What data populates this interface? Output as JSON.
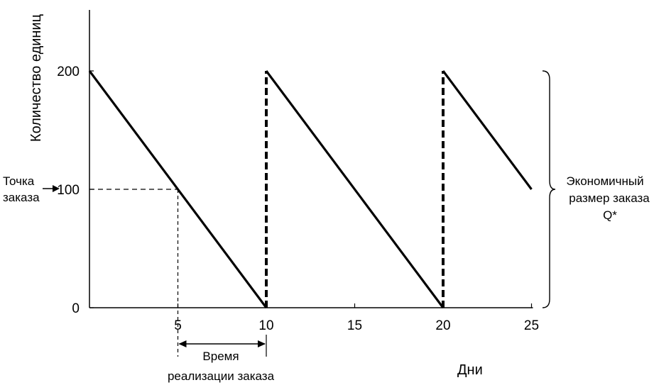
{
  "chart_data": {
    "type": "line",
    "title": "",
    "xlabel": "Дни",
    "ylabel": "Количество единиц",
    "xlim": [
      0,
      25
    ],
    "ylim": [
      0,
      240
    ],
    "x_ticks": [
      "5",
      "10",
      "15",
      "20",
      "25"
    ],
    "y_ticks": [
      "0",
      "100",
      "200"
    ],
    "grid": false,
    "series": [
      {
        "x": [
          0,
          10
        ],
        "y": [
          200,
          0
        ]
      },
      {
        "x": [
          10,
          20
        ],
        "y": [
          200,
          0
        ]
      },
      {
        "x": [
          20,
          25
        ],
        "y": [
          200,
          100
        ]
      }
    ],
    "replenishment_days": [
      10,
      20
    ],
    "reorder_point": {
      "x": 5,
      "y": 100
    },
    "annotations": {
      "reorder_point_line1": "Точка",
      "reorder_point_line2": "заказа",
      "lead_time_line1": "Время",
      "lead_time_line2": "реализации заказа",
      "eoq_line1": "Экономичный",
      "eoq_line2": "размер заказа",
      "eoq_line3": "Q*"
    },
    "lead_time": [
      5,
      10
    ],
    "eoq_range": [
      0,
      200
    ]
  }
}
